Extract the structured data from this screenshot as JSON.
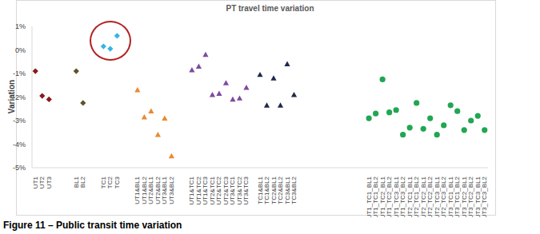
{
  "chart_data": {
    "type": "scatter",
    "title": "PT travel time variation",
    "y_label": "Variation",
    "caption": "Figure 11 – Public transit time variation",
    "categories": [
      "UT1",
      "UT2",
      "UT3",
      null,
      null,
      null,
      "BL1",
      "BL2",
      null,
      null,
      "TC1",
      "TC2",
      "TC3",
      null,
      null,
      "UT1&BL1",
      "UT1&BL2",
      "UT2&BL1",
      "UT2&BL2",
      "UT3&BL1",
      "UT3&BL2",
      null,
      null,
      "UT1&TC1",
      "UT1&TC2",
      "UT1&TC3",
      "UT2&TC1",
      "UT2&TC2",
      "UT2&TC3",
      "UT3&TC1",
      "UT3&TC2",
      "UT3&TC3",
      null,
      "TC1&BL1",
      "TC1&BL2",
      "TC2&BL1",
      "TC2&BL2",
      "TC3&BL1",
      "TC3&BL2",
      null,
      null,
      null,
      null,
      null,
      null,
      null,
      null,
      null,
      null,
      "UT1_TC1_BL1",
      "UT1_TC1_BL2",
      "UT1_TC2_BL1",
      "UT1_TC2_BL2",
      "UT1_TC3_BL1",
      "UT1_TC3_BL2",
      "UT2_TC1_BL1",
      "UT2_TC1_BL2",
      "UT2_TC2_BL1",
      "UT2_TC2_BL2",
      "UT2_TC3_BL1",
      "UT2_TC3_BL2",
      "UT3_TC1_BL1",
      "UT3_TC1_BL2",
      "UT3_TC2_BL1",
      "UT3_TC2_BL2",
      "UT3_TC3_BL1",
      "UT3_TC3_BL2"
    ],
    "series": [
      {
        "color": "#8B1A1A",
        "marker": "diamond",
        "values": [
          -0.9,
          -1.95,
          -2.1,
          null,
          null,
          null,
          null,
          null,
          null,
          null,
          null,
          null,
          null,
          null,
          null,
          null,
          null,
          null,
          null,
          null,
          null,
          null,
          null,
          null,
          null,
          null,
          null,
          null,
          null,
          null,
          null,
          null,
          null,
          null,
          null,
          null,
          null,
          null,
          null,
          null,
          null,
          null,
          null,
          null,
          null,
          null,
          null,
          null,
          null,
          null,
          null,
          null,
          null,
          null,
          null,
          null,
          null,
          null,
          null,
          null,
          null,
          null,
          null,
          null,
          null,
          null,
          null
        ]
      },
      {
        "color": "#5A5428",
        "marker": "diamond",
        "values": [
          null,
          null,
          null,
          null,
          null,
          null,
          -0.9,
          -2.25,
          null,
          null,
          null,
          null,
          null,
          null,
          null,
          null,
          null,
          null,
          null,
          null,
          null,
          null,
          null,
          null,
          null,
          null,
          null,
          null,
          null,
          null,
          null,
          null,
          null,
          null,
          null,
          null,
          null,
          null,
          null,
          null,
          null,
          null,
          null,
          null,
          null,
          null,
          null,
          null,
          null,
          null,
          null,
          null,
          null,
          null,
          null,
          null,
          null,
          null,
          null,
          null,
          null,
          null,
          null,
          null,
          null,
          null,
          null
        ]
      },
      {
        "color": "#33B5E5",
        "marker": "diamond",
        "values": [
          null,
          null,
          null,
          null,
          null,
          null,
          null,
          null,
          null,
          null,
          0.15,
          0.05,
          0.6,
          null,
          null,
          null,
          null,
          null,
          null,
          null,
          null,
          null,
          null,
          null,
          null,
          null,
          null,
          null,
          null,
          null,
          null,
          null,
          null,
          null,
          null,
          null,
          null,
          null,
          null,
          null,
          null,
          null,
          null,
          null,
          null,
          null,
          null,
          null,
          null,
          null,
          null,
          null,
          null,
          null,
          null,
          null,
          null,
          null,
          null,
          null,
          null,
          null,
          null,
          null,
          null,
          null,
          null
        ]
      },
      {
        "color": "#E88A2E",
        "marker": "triangle",
        "values": [
          null,
          null,
          null,
          null,
          null,
          null,
          null,
          null,
          null,
          null,
          null,
          null,
          null,
          null,
          null,
          -1.7,
          -2.85,
          -2.6,
          -3.6,
          -2.9,
          -4.5,
          null,
          null,
          null,
          null,
          null,
          null,
          null,
          null,
          null,
          null,
          null,
          null,
          null,
          null,
          null,
          null,
          null,
          null,
          null,
          null,
          null,
          null,
          null,
          null,
          null,
          null,
          null,
          null,
          null,
          null,
          null,
          null,
          null,
          null,
          null,
          null,
          null,
          null,
          null,
          null,
          null,
          null,
          null,
          null,
          null,
          null
        ]
      },
      {
        "color": "#7E4A9E",
        "marker": "triangle",
        "values": [
          null,
          null,
          null,
          null,
          null,
          null,
          null,
          null,
          null,
          null,
          null,
          null,
          null,
          null,
          null,
          null,
          null,
          null,
          null,
          null,
          null,
          null,
          null,
          -0.85,
          -0.7,
          -0.2,
          -1.9,
          -1.85,
          -1.4,
          -2.1,
          -2.05,
          -1.6,
          null,
          null,
          null,
          null,
          null,
          null,
          null,
          null,
          null,
          null,
          null,
          null,
          null,
          null,
          null,
          null,
          null,
          null,
          null,
          null,
          null,
          null,
          null,
          null,
          null,
          null,
          null,
          null,
          null,
          null,
          null,
          null,
          null,
          null,
          null
        ]
      },
      {
        "color": "#1F2A4A",
        "marker": "triangle",
        "values": [
          null,
          null,
          null,
          null,
          null,
          null,
          null,
          null,
          null,
          null,
          null,
          null,
          null,
          null,
          null,
          null,
          null,
          null,
          null,
          null,
          null,
          null,
          null,
          null,
          null,
          null,
          null,
          null,
          null,
          null,
          null,
          null,
          null,
          -1.05,
          -2.35,
          -1.2,
          -2.35,
          -0.6,
          -1.9,
          null,
          null,
          null,
          null,
          null,
          null,
          null,
          null,
          null,
          null,
          null,
          null,
          null,
          null,
          null,
          null,
          null,
          null,
          null,
          null,
          null,
          null,
          null,
          null,
          null,
          null,
          null,
          null
        ]
      },
      {
        "color": "#21A652",
        "marker": "circle",
        "values": [
          null,
          null,
          null,
          null,
          null,
          null,
          null,
          null,
          null,
          null,
          null,
          null,
          null,
          null,
          null,
          null,
          null,
          null,
          null,
          null,
          null,
          null,
          null,
          null,
          null,
          null,
          null,
          null,
          null,
          null,
          null,
          null,
          null,
          null,
          null,
          null,
          null,
          null,
          null,
          null,
          null,
          null,
          null,
          null,
          null,
          null,
          null,
          null,
          null,
          -2.9,
          -2.7,
          -1.25,
          -2.65,
          -2.55,
          -3.6,
          -3.3,
          -2.25,
          -3.35,
          -2.9,
          -3.6,
          -3.2,
          -2.35,
          -2.6,
          -3.4,
          -3.0,
          -2.8,
          -3.4
        ]
      }
    ],
    "ylim": [
      -5,
      1
    ],
    "yticks": [
      {
        "value": -5,
        "label": "-5%"
      },
      {
        "value": -4,
        "label": "-4%"
      },
      {
        "value": -3,
        "label": "-3%"
      },
      {
        "value": -2,
        "label": "-2%"
      },
      {
        "value": -1,
        "label": "-1%"
      },
      {
        "value": 0,
        "label": "0%"
      },
      {
        "value": 1,
        "label": "1%"
      }
    ],
    "grid": false
  }
}
